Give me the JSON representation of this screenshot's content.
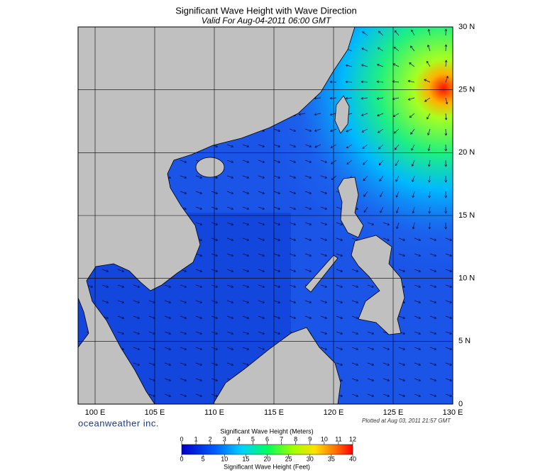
{
  "header": {
    "title": "Significant Wave Height with Wave Direction",
    "subtitle": "Valid For Aug-04-2011 06:00 GMT"
  },
  "map": {
    "lon_ticks": [
      {
        "value": 100,
        "label": "100 E"
      },
      {
        "value": 105,
        "label": "105 E"
      },
      {
        "value": 110,
        "label": "110 E"
      },
      {
        "value": 115,
        "label": "115 E"
      },
      {
        "value": 120,
        "label": "120 E"
      },
      {
        "value": 125,
        "label": "125 E"
      },
      {
        "value": 130,
        "label": "130 E"
      }
    ],
    "lat_ticks": [
      {
        "value": 0,
        "label": "0"
      },
      {
        "value": 5,
        "label": "5 N"
      },
      {
        "value": 10,
        "label": "10 N"
      },
      {
        "value": 15,
        "label": "15 N"
      },
      {
        "value": 20,
        "label": "20 N"
      },
      {
        "value": 25,
        "label": "25 N"
      },
      {
        "value": 30,
        "label": "30 N"
      }
    ]
  },
  "footer": {
    "brand": "oceanweather inc.",
    "plotted": "Plotted at Aug 03, 2011 21:57 GMT"
  },
  "colorbar": {
    "meters_title": "Significant Wave Height (Meters)",
    "meters_ticks": [
      0,
      1,
      2,
      3,
      4,
      5,
      6,
      7,
      8,
      9,
      10,
      11,
      12
    ],
    "feet_ticks": [
      0,
      5,
      10,
      15,
      20,
      25,
      30,
      35,
      40
    ],
    "feet_title": "Significant Wave Height (Feet)"
  }
}
